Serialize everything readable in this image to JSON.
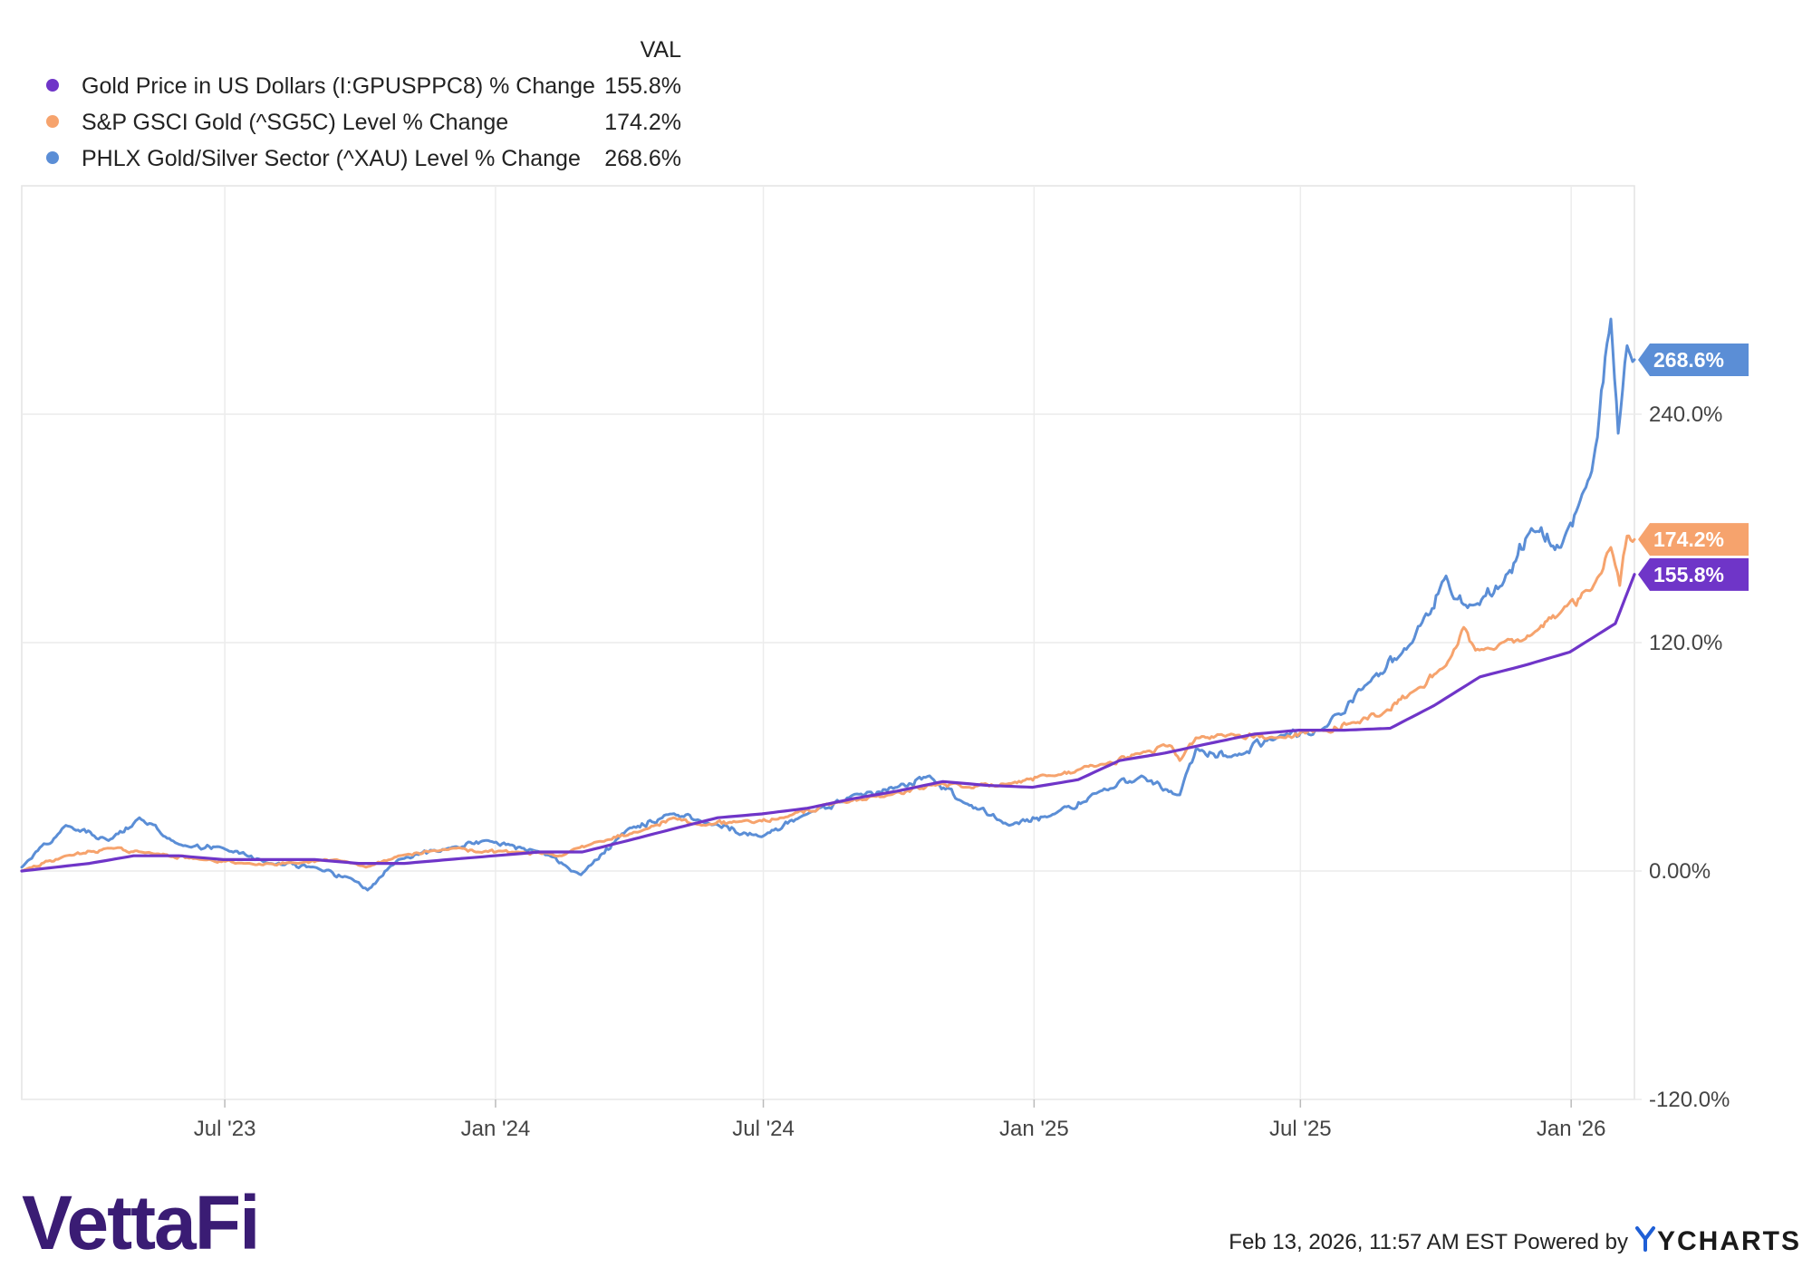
{
  "chart_data": {
    "type": "line",
    "legend": {
      "header": "VAL",
      "placement": "top-left"
    },
    "x_ticks": [
      "Jul '23",
      "Jan '24",
      "Jul '24",
      "Jan '25",
      "Jul '25",
      "Jan '26"
    ],
    "x_tick_dates": [
      "2023-07-01",
      "2024-01-01",
      "2024-07-01",
      "2025-01-01",
      "2025-07-01",
      "2026-01-01"
    ],
    "xlim": [
      "2023-02-13",
      "2026-02-13"
    ],
    "y_ticks": [
      "240.0%",
      "120.0%",
      "0.00%",
      "-120.0%"
    ],
    "y_tick_values": [
      240,
      120,
      0,
      -120
    ],
    "ylim": [
      -120,
      360
    ],
    "grid": true,
    "series": [
      {
        "name": "Gold Price in US Dollars (I:GPUSPPC8) % Change",
        "value_label": "155.8%",
        "color": "#6f35c8",
        "x": [
          "2023-02-13",
          "2023-03-31",
          "2023-04-30",
          "2023-05-31",
          "2023-06-30",
          "2023-07-31",
          "2023-08-31",
          "2023-09-30",
          "2023-10-31",
          "2023-11-30",
          "2023-12-31",
          "2024-01-31",
          "2024-02-29",
          "2024-03-31",
          "2024-04-30",
          "2024-05-31",
          "2024-06-30",
          "2024-07-31",
          "2024-08-31",
          "2024-09-30",
          "2024-10-31",
          "2024-11-30",
          "2024-12-31",
          "2025-01-31",
          "2025-02-28",
          "2025-03-31",
          "2025-04-30",
          "2025-05-31",
          "2025-06-30",
          "2025-07-31",
          "2025-08-31",
          "2025-09-30",
          "2025-10-31",
          "2025-11-30",
          "2025-12-31",
          "2026-01-31",
          "2026-02-13"
        ],
        "y": [
          0,
          4,
          8,
          8,
          6,
          6,
          6,
          4,
          4,
          6,
          8,
          10,
          10,
          16,
          22,
          28,
          30,
          33,
          38,
          42,
          47,
          45,
          44,
          48,
          58,
          62,
          67,
          72,
          74,
          74,
          75,
          87,
          102,
          108,
          115,
          130,
          155.8
        ]
      },
      {
        "name": "S&P GSCI Gold (^SG5C) Level % Change",
        "value_label": "174.2%",
        "color": "#f6a36d",
        "x": [
          "2023-02-13",
          "2023-03-15",
          "2023-04-15",
          "2023-05-05",
          "2023-06-15",
          "2023-07-15",
          "2023-08-20",
          "2023-09-15",
          "2023-10-05",
          "2023-10-27",
          "2023-12-04",
          "2023-12-20",
          "2024-01-15",
          "2024-02-15",
          "2024-03-08",
          "2024-04-12",
          "2024-05-01",
          "2024-05-20",
          "2024-06-15",
          "2024-07-15",
          "2024-08-20",
          "2024-09-25",
          "2024-10-30",
          "2024-11-14",
          "2024-12-15",
          "2025-01-15",
          "2025-02-15",
          "2025-03-15",
          "2025-04-03",
          "2025-04-10",
          "2025-04-21",
          "2025-05-15",
          "2025-06-13",
          "2025-07-15",
          "2025-08-05",
          "2025-08-25",
          "2025-09-15",
          "2025-10-08",
          "2025-10-20",
          "2025-10-28",
          "2025-11-15",
          "2025-12-05",
          "2025-12-25",
          "2026-01-15",
          "2026-01-28",
          "2026-02-03",
          "2026-02-08",
          "2026-02-13"
        ],
        "y": [
          0,
          8,
          12,
          10,
          6,
          4,
          4,
          6,
          2,
          8,
          12,
          10,
          10,
          8,
          15,
          22,
          28,
          24,
          26,
          28,
          36,
          40,
          46,
          44,
          46,
          50,
          56,
          62,
          66,
          58,
          70,
          72,
          70,
          74,
          78,
          82,
          94,
          108,
          128,
          116,
          120,
          124,
          136,
          148,
          170,
          150,
          176,
          174.2
        ]
      },
      {
        "name": "PHLX Gold/Silver Sector (^XAU) Level % Change",
        "value_label": "268.6%",
        "color": "#5b8ed6",
        "x": [
          "2023-02-13",
          "2023-03-15",
          "2023-04-13",
          "2023-05-04",
          "2023-05-31",
          "2023-06-30",
          "2023-07-31",
          "2023-08-31",
          "2023-09-30",
          "2023-10-06",
          "2023-10-27",
          "2023-11-30",
          "2023-12-27",
          "2024-01-31",
          "2024-02-28",
          "2024-03-31",
          "2024-04-30",
          "2024-05-20",
          "2024-06-30",
          "2024-07-31",
          "2024-08-31",
          "2024-09-30",
          "2024-10-22",
          "2024-11-14",
          "2024-12-15",
          "2025-01-15",
          "2025-02-15",
          "2025-03-15",
          "2025-04-08",
          "2025-04-10",
          "2025-04-21",
          "2025-05-15",
          "2025-06-15",
          "2025-07-15",
          "2025-08-15",
          "2025-09-15",
          "2025-10-08",
          "2025-10-20",
          "2025-10-28",
          "2025-11-15",
          "2025-12-05",
          "2025-12-25",
          "2026-01-15",
          "2026-01-28",
          "2026-02-02",
          "2026-02-08",
          "2026-02-13"
        ],
        "y": [
          2,
          24,
          16,
          28,
          14,
          12,
          4,
          2,
          -6,
          -10,
          6,
          12,
          16,
          10,
          -2,
          22,
          30,
          26,
          18,
          30,
          40,
          44,
          50,
          36,
          24,
          30,
          42,
          50,
          40,
          40,
          64,
          60,
          70,
          74,
          98,
          120,
          155,
          140,
          140,
          150,
          180,
          170,
          210,
          290,
          230,
          276,
          268.6
        ]
      }
    ]
  },
  "footer": {
    "brand": "VettaFi",
    "timestamp": "Feb 13, 2026, 11:57 AM EST Powered by",
    "provider": "YCHARTS"
  }
}
